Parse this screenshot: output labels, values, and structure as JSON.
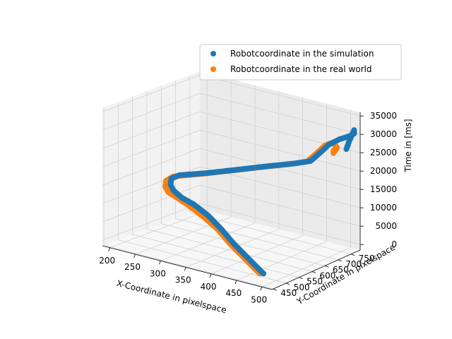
{
  "chart_data": {
    "type": "scatter",
    "projection": "3d",
    "xlabel": "X-Coordinate in pixelspace",
    "ylabel": "Y-Coordinate in pixelspace",
    "zlabel": "Time in [ms]",
    "xlim": [
      185,
      520
    ],
    "ylim": [
      445,
      785
    ],
    "zlim": [
      -1500,
      36000
    ],
    "xticks": [
      200,
      250,
      300,
      350,
      400,
      450,
      500
    ],
    "yticks": [
      450,
      500,
      550,
      600,
      650,
      700,
      750
    ],
    "zticks": [
      0,
      5000,
      10000,
      15000,
      20000,
      25000,
      30000,
      35000
    ],
    "grid": true,
    "legend": {
      "position": "top-right"
    },
    "series": [
      {
        "name": "Robotcoordinate in the simulation",
        "color": "#1f77b4",
        "points": [
          [
            480,
            490,
            0
          ],
          [
            440,
            510,
            2000
          ],
          [
            400,
            530,
            4000
          ],
          [
            360,
            555,
            6000
          ],
          [
            320,
            580,
            7500
          ],
          [
            280,
            600,
            8500
          ],
          [
            250,
            610,
            9000
          ],
          [
            225,
            625,
            9600
          ],
          [
            210,
            640,
            10200
          ],
          [
            200,
            660,
            11000
          ],
          [
            205,
            680,
            11500
          ],
          [
            250,
            700,
            13000
          ],
          [
            300,
            720,
            15000
          ],
          [
            350,
            740,
            17000
          ],
          [
            400,
            755,
            19000
          ],
          [
            430,
            760,
            20500
          ],
          [
            445,
            770,
            23000
          ],
          [
            460,
            775,
            25500
          ],
          [
            480,
            778,
            27500
          ],
          [
            500,
            780,
            29000
          ],
          [
            510,
            780,
            30000
          ],
          [
            510,
            780,
            31000
          ],
          [
            505,
            770,
            28000
          ],
          [
            502,
            765,
            26000
          ]
        ]
      },
      {
        "name": "Robotcoordinate in the real world",
        "color": "#ff7f0e",
        "points": [
          [
            475,
            485,
            0
          ],
          [
            435,
            505,
            2000
          ],
          [
            395,
            525,
            4000
          ],
          [
            355,
            550,
            6000
          ],
          [
            315,
            572,
            7200
          ],
          [
            275,
            592,
            8200
          ],
          [
            245,
            605,
            8800
          ],
          [
            220,
            615,
            9300
          ],
          [
            205,
            630,
            9800
          ],
          [
            195,
            650,
            10500
          ],
          [
            198,
            670,
            11200
          ],
          [
            245,
            695,
            12800
          ],
          [
            295,
            715,
            14800
          ],
          [
            345,
            735,
            16800
          ],
          [
            395,
            752,
            18800
          ],
          [
            425,
            757,
            20300
          ],
          [
            440,
            765,
            22800
          ],
          [
            455,
            770,
            25300
          ],
          [
            470,
            772,
            26500
          ],
          [
            480,
            770,
            25500
          ],
          [
            475,
            765,
            24000
          ],
          [
            478,
            760,
            25000
          ]
        ]
      }
    ]
  }
}
